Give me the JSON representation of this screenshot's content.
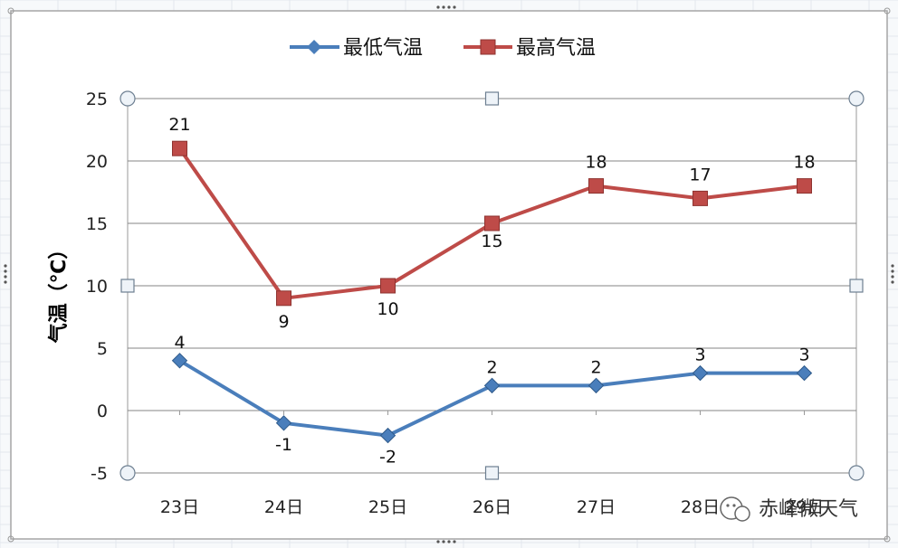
{
  "chart_data": {
    "type": "line",
    "categories": [
      "23日",
      "24日",
      "25日",
      "26日",
      "27日",
      "28日",
      "29日"
    ],
    "series": [
      {
        "name": "最低气温",
        "values": [
          4,
          -1,
          -2,
          2,
          2,
          3,
          3
        ],
        "color": "#4a7ebb",
        "marker": "diamond"
      },
      {
        "name": "最高气温",
        "values": [
          21,
          9,
          10,
          15,
          18,
          17,
          18
        ],
        "color": "#be4b48",
        "marker": "square"
      }
    ],
    "title": "",
    "xlabel": "",
    "ylabel": "气温（℃）",
    "ylim": [
      -5,
      25
    ],
    "yticks": [
      -5,
      0,
      5,
      10,
      15,
      20,
      25
    ],
    "grid": true,
    "legend": "top-center"
  },
  "watermark": {
    "text": "赤峰微天气",
    "icon": "wechat-icon"
  },
  "colors": {
    "frame_border": "#a6a6a6",
    "gridline": "#868686",
    "handle": "#7f9db9",
    "background": "#ffffff"
  }
}
